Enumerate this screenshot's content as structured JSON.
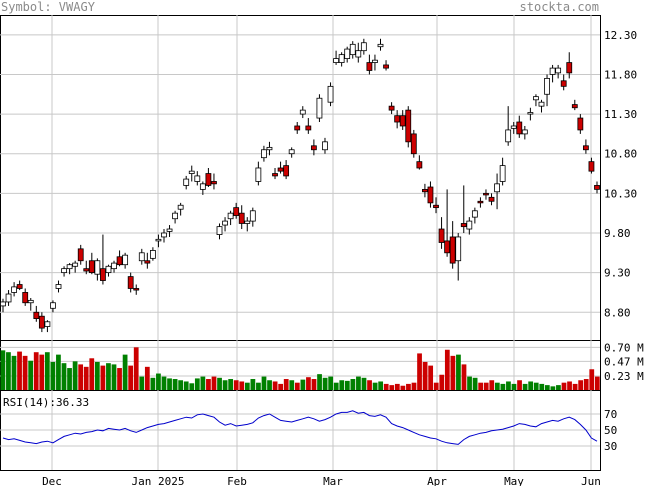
{
  "header": {
    "symbol_label": "Symbol: VWAGY",
    "site": "stockta.com"
  },
  "rsi_label": "RSI(14):",
  "rsi_value": "36.33",
  "price_axis_labels": [
    "12.30",
    "11.80",
    "11.30",
    "10.80",
    "10.30",
    "9.80",
    "9.30",
    "8.80"
  ],
  "volume_axis_labels": [
    "0.70 M",
    "0.47 M",
    "0.23 M"
  ],
  "rsi_axis_labels": [
    "70",
    "50",
    "30"
  ],
  "x_axis_labels": [
    "Dec",
    "Jan 2025",
    "Feb",
    "Mar",
    "Apr",
    "May",
    "Jun"
  ],
  "colors": {
    "up_volume": "#008000",
    "down_volume": "#cc0000",
    "rsi_line": "#0000cc",
    "grid": "#c8c8c8"
  },
  "chart_data": [
    {
      "type": "candlestick",
      "panel": "price",
      "ylim": [
        8.45,
        12.55
      ],
      "yticks": [
        12.3,
        11.8,
        11.3,
        10.8,
        10.3,
        9.8,
        9.3,
        8.8
      ],
      "grid": true,
      "candles": [
        [
          8.88,
          8.97,
          8.8,
          8.93
        ],
        [
          8.93,
          9.08,
          8.88,
          9.03
        ],
        [
          9.05,
          9.18,
          9.0,
          9.12
        ],
        [
          9.15,
          9.2,
          9.08,
          9.1
        ],
        [
          9.05,
          9.1,
          8.88,
          8.92
        ],
        [
          8.92,
          8.98,
          8.82,
          8.95
        ],
        [
          8.8,
          8.88,
          8.68,
          8.72
        ],
        [
          8.75,
          8.8,
          8.55,
          8.6
        ],
        [
          8.62,
          8.7,
          8.55,
          8.68
        ],
        [
          8.85,
          8.95,
          8.8,
          8.92
        ],
        [
          9.1,
          9.2,
          9.05,
          9.15
        ],
        [
          9.3,
          9.38,
          9.25,
          9.35
        ],
        [
          9.35,
          9.42,
          9.28,
          9.4
        ],
        [
          9.38,
          9.45,
          9.3,
          9.42
        ],
        [
          9.6,
          9.65,
          9.4,
          9.45
        ],
        [
          9.35,
          9.45,
          9.28,
          9.32
        ],
        [
          9.45,
          9.55,
          9.28,
          9.3
        ],
        [
          9.28,
          9.48,
          9.2,
          9.45
        ],
        [
          9.35,
          9.78,
          9.15,
          9.2
        ],
        [
          9.3,
          9.4,
          9.25,
          9.38
        ],
        [
          9.35,
          9.45,
          9.3,
          9.42
        ],
        [
          9.5,
          9.58,
          9.38,
          9.4
        ],
        [
          9.4,
          9.55,
          9.35,
          9.52
        ],
        [
          9.25,
          9.3,
          9.05,
          9.1
        ],
        [
          9.1,
          9.15,
          9.02,
          9.08
        ],
        [
          9.45,
          9.6,
          9.4,
          9.55
        ],
        [
          9.45,
          9.55,
          9.35,
          9.42
        ],
        [
          9.48,
          9.62,
          9.45,
          9.58
        ],
        [
          9.7,
          9.78,
          9.62,
          9.72
        ],
        [
          9.75,
          9.85,
          9.68,
          9.8
        ],
        [
          9.82,
          9.9,
          9.75,
          9.85
        ],
        [
          9.98,
          10.08,
          9.92,
          10.05
        ],
        [
          10.1,
          10.18,
          10.02,
          10.15
        ],
        [
          10.4,
          10.52,
          10.35,
          10.48
        ],
        [
          10.55,
          10.65,
          10.45,
          10.58
        ],
        [
          10.45,
          10.58,
          10.4,
          10.52
        ],
        [
          10.35,
          10.45,
          10.28,
          10.42
        ],
        [
          10.55,
          10.62,
          10.38,
          10.4
        ],
        [
          10.45,
          10.55,
          10.35,
          10.42
        ],
        [
          9.78,
          9.92,
          9.72,
          9.88
        ],
        [
          9.9,
          10.0,
          9.82,
          9.95
        ],
        [
          9.98,
          10.08,
          9.9,
          10.05
        ],
        [
          10.12,
          10.18,
          9.98,
          10.02
        ],
        [
          10.05,
          10.15,
          9.85,
          9.92
        ],
        [
          9.92,
          10.0,
          9.82,
          9.95
        ],
        [
          9.95,
          10.12,
          9.88,
          10.08
        ],
        [
          10.45,
          10.7,
          10.4,
          10.62
        ],
        [
          10.75,
          10.9,
          10.7,
          10.85
        ],
        [
          10.85,
          10.95,
          10.78,
          10.88
        ],
        [
          10.55,
          10.62,
          10.48,
          10.52
        ],
        [
          10.62,
          10.7,
          10.55,
          10.58
        ],
        [
          10.65,
          10.72,
          10.48,
          10.52
        ],
        [
          10.8,
          10.88,
          10.75,
          10.85
        ],
        [
          11.15,
          11.2,
          11.05,
          11.1
        ],
        [
          11.3,
          11.4,
          11.25,
          11.35
        ],
        [
          11.15,
          11.25,
          11.05,
          11.1
        ],
        [
          10.9,
          10.98,
          10.78,
          10.85
        ],
        [
          11.25,
          11.55,
          11.2,
          11.5
        ],
        [
          10.85,
          11.0,
          10.8,
          10.95
        ],
        [
          11.45,
          11.7,
          11.4,
          11.65
        ],
        [
          11.95,
          12.1,
          11.92,
          12.0
        ],
        [
          11.95,
          12.08,
          11.9,
          12.05
        ],
        [
          12.0,
          12.15,
          11.95,
          12.12
        ],
        [
          12.05,
          12.22,
          12.0,
          12.18
        ],
        [
          12.02,
          12.2,
          11.95,
          12.1
        ],
        [
          12.1,
          12.25,
          12.05,
          12.2
        ],
        [
          11.95,
          12.05,
          11.8,
          11.85
        ],
        [
          11.95,
          12.05,
          11.85,
          11.98
        ],
        [
          12.15,
          12.25,
          12.1,
          12.18
        ],
        [
          11.92,
          11.98,
          11.85,
          11.88
        ],
        [
          11.4,
          11.45,
          11.3,
          11.35
        ],
        [
          11.28,
          11.35,
          11.12,
          11.2
        ],
        [
          11.28,
          11.35,
          11.1,
          11.15
        ],
        [
          11.35,
          11.4,
          10.88,
          10.95
        ],
        [
          11.05,
          11.1,
          10.75,
          10.8
        ],
        [
          10.7,
          10.78,
          10.6,
          10.62
        ],
        [
          10.35,
          10.42,
          10.25,
          10.32
        ],
        [
          10.38,
          10.45,
          10.12,
          10.18
        ],
        [
          10.15,
          10.25,
          10.05,
          10.12
        ],
        [
          9.85,
          10.0,
          9.6,
          9.68
        ],
        [
          9.7,
          10.35,
          9.5,
          9.55
        ],
        [
          9.75,
          9.95,
          9.35,
          9.42
        ],
        [
          9.45,
          9.8,
          9.2,
          9.75
        ],
        [
          9.92,
          10.4,
          9.8,
          9.88
        ],
        [
          9.85,
          10.0,
          9.78,
          9.95
        ],
        [
          10.0,
          10.12,
          9.92,
          10.08
        ],
        [
          10.2,
          10.25,
          10.12,
          10.18
        ],
        [
          10.3,
          10.35,
          10.22,
          10.28
        ],
        [
          10.25,
          10.3,
          10.15,
          10.2
        ],
        [
          10.32,
          10.55,
          10.1,
          10.42
        ],
        [
          10.45,
          10.75,
          10.4,
          10.65
        ],
        [
          10.95,
          11.4,
          10.9,
          11.1
        ],
        [
          11.12,
          11.2,
          11.05,
          11.15
        ],
        [
          11.2,
          11.28,
          11.0,
          11.05
        ],
        [
          11.05,
          11.15,
          10.98,
          11.1
        ],
        [
          11.3,
          11.38,
          11.22,
          11.32
        ],
        [
          11.48,
          11.55,
          11.4,
          11.52
        ],
        [
          11.4,
          11.48,
          11.32,
          11.45
        ],
        [
          11.55,
          11.8,
          11.4,
          11.75
        ],
        [
          11.8,
          11.92,
          11.7,
          11.88
        ],
        [
          11.82,
          11.92,
          11.75,
          11.88
        ],
        [
          11.72,
          11.8,
          11.6,
          11.65
        ],
        [
          11.95,
          12.08,
          11.75,
          11.82
        ],
        [
          11.42,
          11.48,
          11.35,
          11.38
        ],
        [
          11.25,
          11.3,
          11.05,
          11.1
        ],
        [
          10.9,
          10.98,
          10.8,
          10.85
        ],
        [
          10.7,
          10.75,
          10.55,
          10.58
        ],
        [
          10.4,
          10.45,
          10.3,
          10.35
        ]
      ]
    },
    {
      "type": "bar",
      "panel": "volume",
      "ylim": [
        0,
        0.82
      ],
      "yticks": [
        0.7,
        0.47,
        0.23
      ],
      "unit": "M",
      "values": [
        0.65,
        0.62,
        0.56,
        0.63,
        0.56,
        0.48,
        0.62,
        0.58,
        0.62,
        0.46,
        0.58,
        0.44,
        0.36,
        0.47,
        0.42,
        0.38,
        0.52,
        0.46,
        0.4,
        0.44,
        0.42,
        0.36,
        0.58,
        0.4,
        0.7,
        0.22,
        0.38,
        0.2,
        0.27,
        0.22,
        0.19,
        0.18,
        0.16,
        0.14,
        0.11,
        0.19,
        0.22,
        0.18,
        0.22,
        0.2,
        0.16,
        0.18,
        0.16,
        0.14,
        0.12,
        0.18,
        0.12,
        0.22,
        0.16,
        0.14,
        0.1,
        0.18,
        0.16,
        0.12,
        0.17,
        0.21,
        0.18,
        0.26,
        0.2,
        0.22,
        0.12,
        0.16,
        0.15,
        0.18,
        0.22,
        0.2,
        0.16,
        0.12,
        0.14,
        0.1,
        0.08,
        0.1,
        0.07,
        0.1,
        0.12,
        0.6,
        0.46,
        0.4,
        0.12,
        0.25,
        0.66,
        0.56,
        0.58,
        0.42,
        0.22,
        0.2,
        0.12,
        0.12,
        0.16,
        0.12,
        0.1,
        0.14,
        0.1,
        0.16,
        0.1,
        0.14,
        0.12,
        0.1,
        0.08,
        0.06,
        0.08,
        0.12,
        0.14,
        0.1,
        0.16,
        0.18,
        0.34,
        0.22
      ]
    },
    {
      "type": "line",
      "panel": "rsi",
      "ylim": [
        0,
        100
      ],
      "yticks": [
        70,
        50,
        30
      ],
      "series": [
        {
          "name": "RSI(14)",
          "values": [
            40,
            38,
            39,
            37,
            35,
            34,
            33,
            35,
            36,
            34,
            38,
            42,
            44,
            46,
            45,
            47,
            48,
            50,
            49,
            52,
            51,
            50,
            52,
            49,
            47,
            50,
            53,
            55,
            57,
            58,
            60,
            62,
            64,
            66,
            65,
            69,
            70,
            68,
            66,
            60,
            56,
            58,
            55,
            56,
            57,
            59,
            65,
            68,
            70,
            66,
            62,
            61,
            60,
            62,
            64,
            66,
            64,
            61,
            63,
            66,
            70,
            72,
            72,
            74,
            71,
            72,
            68,
            67,
            69,
            66,
            58,
            55,
            53,
            50,
            47,
            44,
            42,
            40,
            39,
            36,
            34,
            33,
            32,
            38,
            42,
            44,
            46,
            47,
            49,
            50,
            51,
            53,
            55,
            58,
            57,
            55,
            54,
            58,
            60,
            62,
            61,
            64,
            66,
            63,
            57,
            50,
            40,
            36
          ]
        }
      ]
    }
  ]
}
